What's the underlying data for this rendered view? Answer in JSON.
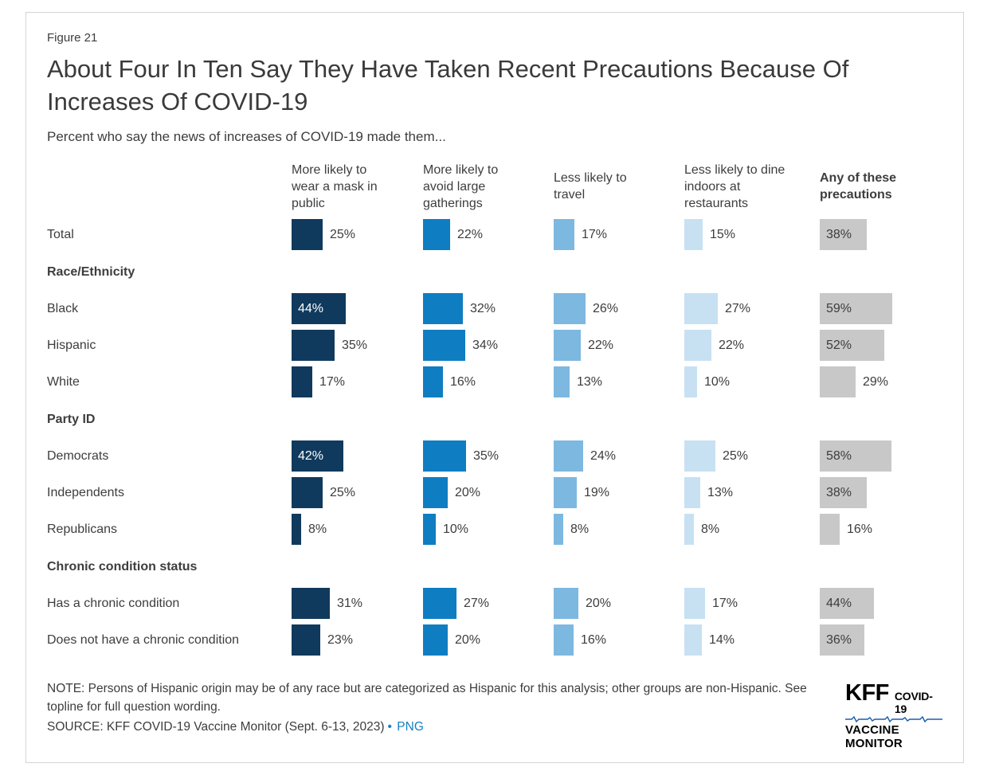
{
  "figure_label": "Figure 21",
  "title": "About Four In Ten Say They Have Taken Recent Precautions Because Of Increases Of COVID-19",
  "subtitle": "Percent who say the news of increases of COVID-19 made them...",
  "chart_data": {
    "type": "bar",
    "unit": "%",
    "value_range": [
      0,
      100
    ],
    "columns": [
      "More likely to wear a mask in public",
      "More likely to avoid large gatherings",
      "Less likely to travel",
      "Less likely to dine indoors at restaurants",
      "Any of these precautions"
    ],
    "column_colors": [
      "#103a5d",
      "#0f7dc2",
      "#7db8e0",
      "#c7e1f3",
      "#c8c8c8"
    ],
    "groups": [
      {
        "header": null,
        "rows": [
          {
            "label": "Total",
            "values": [
              25,
              22,
              17,
              15,
              38
            ]
          }
        ]
      },
      {
        "header": "Race/Ethnicity",
        "rows": [
          {
            "label": "Black",
            "values": [
              44,
              32,
              26,
              27,
              59
            ]
          },
          {
            "label": "Hispanic",
            "values": [
              35,
              34,
              22,
              22,
              52
            ]
          },
          {
            "label": "White",
            "values": [
              17,
              16,
              13,
              10,
              29
            ]
          }
        ]
      },
      {
        "header": "Party ID",
        "rows": [
          {
            "label": "Democrats",
            "values": [
              42,
              35,
              24,
              25,
              58
            ]
          },
          {
            "label": "Independents",
            "values": [
              25,
              20,
              19,
              13,
              38
            ]
          },
          {
            "label": "Republicans",
            "values": [
              8,
              10,
              8,
              8,
              16
            ]
          }
        ]
      },
      {
        "header": "Chronic condition status",
        "rows": [
          {
            "label": "Has a chronic condition",
            "values": [
              31,
              27,
              20,
              17,
              44
            ]
          },
          {
            "label": "Does not have a chronic condition",
            "values": [
              23,
              20,
              16,
              14,
              36
            ]
          }
        ]
      }
    ]
  },
  "footer": {
    "note": "NOTE: Persons of Hispanic origin may be of any race but are categorized as Hispanic for this analysis; other groups are non-Hispanic. See topline for full question wording.",
    "source_text": "SOURCE: KFF COVID-19 Vaccine Monitor (Sept. 6-13, 2023)",
    "bullet": "•",
    "link_label": "PNG"
  },
  "logo": {
    "kff": "KFF",
    "covid": "COVID-19",
    "monitor": "VACCINE MONITOR"
  }
}
